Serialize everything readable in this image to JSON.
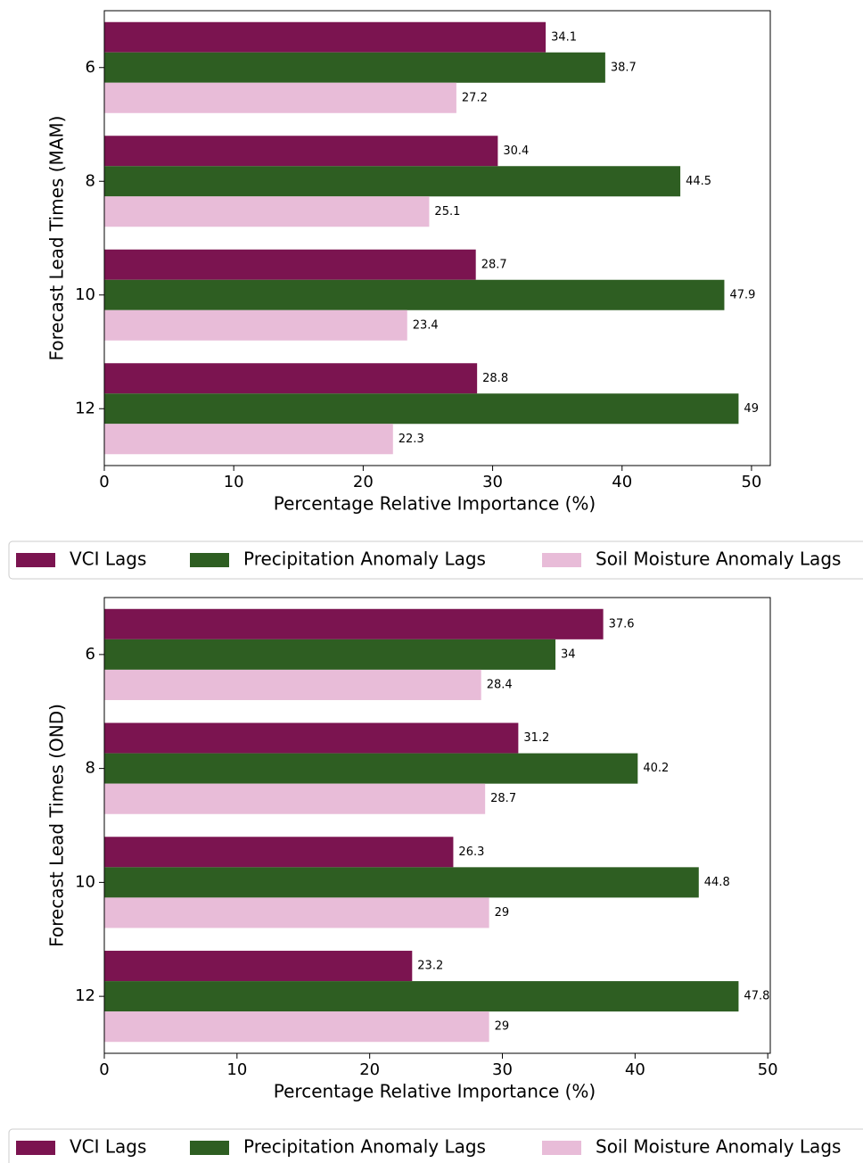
{
  "chart_data": [
    {
      "type": "barh",
      "ylabel": "Forecast Lead Times (MAM)",
      "xlabel": "Percentage Relative Importance (%)",
      "categories": [
        "6",
        "8",
        "10",
        "12"
      ],
      "series": [
        {
          "name": "VCI Lags",
          "color": "#7b1450",
          "values": [
            34.1,
            30.4,
            28.7,
            28.8
          ]
        },
        {
          "name": "Precipitation Anomaly Lags",
          "color": "#2e5e22",
          "values": [
            38.7,
            44.5,
            47.9,
            49
          ]
        },
        {
          "name": "Soil Moisture Anomaly Lags",
          "color": "#e8bcd8",
          "values": [
            27.2,
            25.1,
            23.4,
            22.3
          ]
        }
      ],
      "xlim": [
        0,
        51.45
      ],
      "xticks": [
        0,
        10,
        20,
        30,
        40,
        50
      ],
      "legend": "below"
    },
    {
      "type": "barh",
      "ylabel": "Forecast Lead Times (OND)",
      "xlabel": "Percentage Relative Importance (%)",
      "categories": [
        "6",
        "8",
        "10",
        "12"
      ],
      "series": [
        {
          "name": "VCI Lags",
          "color": "#7b1450",
          "values": [
            37.6,
            31.2,
            26.3,
            23.2
          ]
        },
        {
          "name": "Precipitation Anomaly Lags",
          "color": "#2e5e22",
          "values": [
            34,
            40.2,
            44.8,
            47.8
          ]
        },
        {
          "name": "Soil Moisture Anomaly Lags",
          "color": "#e8bcd8",
          "values": [
            28.4,
            28.7,
            29,
            29
          ]
        }
      ],
      "xlim": [
        0,
        50.19
      ],
      "xticks": [
        0,
        10,
        20,
        30,
        40,
        50
      ],
      "legend": "below"
    }
  ]
}
